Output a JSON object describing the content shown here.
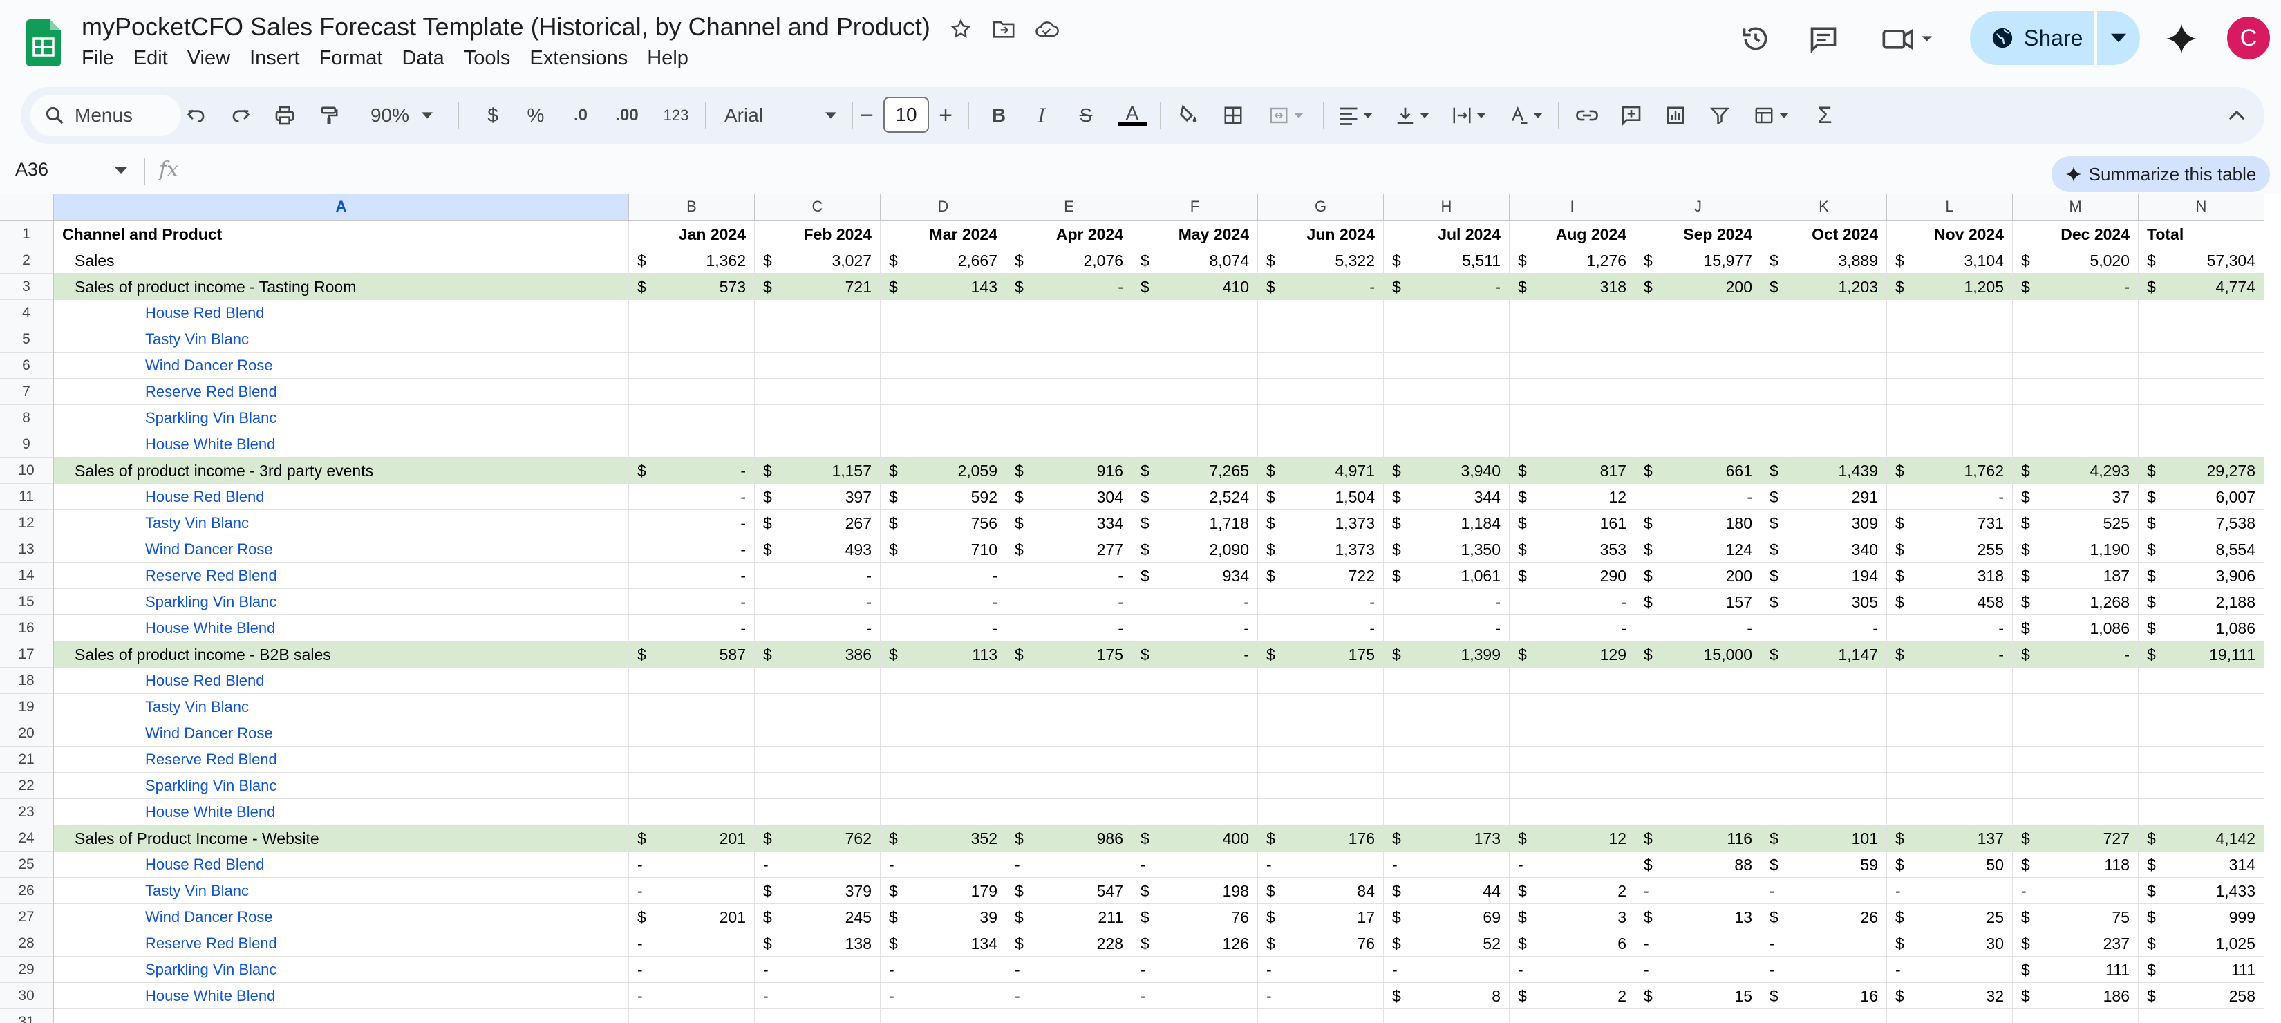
{
  "header": {
    "title": "myPocketCFO Sales Forecast Template (Historical, by Channel and Product)",
    "menu": [
      "File",
      "Edit",
      "View",
      "Insert",
      "Format",
      "Data",
      "Tools",
      "Extensions",
      "Help"
    ],
    "share_label": "Share",
    "avatar_letter": "C"
  },
  "toolbar": {
    "search_label": "Menus",
    "zoom": "90%",
    "currency": "$",
    "percent": "%",
    "decrease_decimal": ".0",
    "increase_decimal": ".00",
    "number_format": "123",
    "font": "Arial",
    "font_size": "10",
    "bold": "B",
    "italic": "I",
    "strike": "S",
    "text_color": "A"
  },
  "formula_bar": {
    "cell_ref": "A36",
    "fx": "fx",
    "summarize_label": "Summarize this table"
  },
  "columns": [
    "A",
    "B",
    "C",
    "D",
    "E",
    "F",
    "G",
    "H",
    "I",
    "J",
    "K",
    "L",
    "M",
    "N"
  ],
  "sheet": {
    "headers": [
      "Channel and Product",
      "Jan 2024",
      "Feb 2024",
      "Mar 2024",
      "Apr 2024",
      "May 2024",
      "Jun 2024",
      "Jul 2024",
      "Aug 2024",
      "Sep 2024",
      "Oct 2024",
      "Nov 2024",
      "Dec 2024",
      "Total"
    ],
    "rows": [
      {
        "n": "2",
        "label": "Sales",
        "level": 1,
        "green": false,
        "vals": [
          [
            "$",
            "1,362"
          ],
          [
            "$",
            "3,027"
          ],
          [
            "$",
            "2,667"
          ],
          [
            "$",
            "2,076"
          ],
          [
            "$",
            "8,074"
          ],
          [
            "$",
            "5,322"
          ],
          [
            "$",
            "5,511"
          ],
          [
            "$",
            "1,276"
          ],
          [
            "$",
            "15,977"
          ],
          [
            "$",
            "3,889"
          ],
          [
            "$",
            "3,104"
          ],
          [
            "$",
            "5,020"
          ],
          [
            "$",
            "57,304"
          ]
        ]
      },
      {
        "n": "3",
        "label": "Sales of product income - Tasting Room",
        "level": 1,
        "green": true,
        "vals": [
          [
            "$",
            "573"
          ],
          [
            "$",
            "721"
          ],
          [
            "$",
            "143"
          ],
          [
            "$",
            "-"
          ],
          [
            "$",
            "410"
          ],
          [
            "$",
            "-"
          ],
          [
            "$",
            "-"
          ],
          [
            "$",
            "318"
          ],
          [
            "$",
            "200"
          ],
          [
            "$",
            "1,203"
          ],
          [
            "$",
            "1,205"
          ],
          [
            "$",
            "-"
          ],
          [
            "$",
            "4,774"
          ]
        ]
      },
      {
        "n": "4",
        "label": "House Red Blend",
        "level": 2,
        "green": false,
        "vals": []
      },
      {
        "n": "5",
        "label": "Tasty Vin Blanc",
        "level": 2,
        "green": false,
        "vals": []
      },
      {
        "n": "6",
        "label": "Wind Dancer Rose",
        "level": 2,
        "green": false,
        "vals": []
      },
      {
        "n": "7",
        "label": "Reserve Red Blend",
        "level": 2,
        "green": false,
        "vals": []
      },
      {
        "n": "8",
        "label": "Sparkling Vin Blanc",
        "level": 2,
        "green": false,
        "vals": []
      },
      {
        "n": "9",
        "label": "House White Blend",
        "level": 2,
        "green": false,
        "vals": []
      },
      {
        "n": "10",
        "label": "Sales of product income - 3rd party events",
        "level": 1,
        "green": true,
        "vals": [
          [
            "$",
            "-"
          ],
          [
            "$",
            "1,157"
          ],
          [
            "$",
            "2,059"
          ],
          [
            "$",
            "916"
          ],
          [
            "$",
            "7,265"
          ],
          [
            "$",
            "4,971"
          ],
          [
            "$",
            "3,940"
          ],
          [
            "$",
            "817"
          ],
          [
            "$",
            "661"
          ],
          [
            "$",
            "1,439"
          ],
          [
            "$",
            "1,762"
          ],
          [
            "$",
            "4,293"
          ],
          [
            "$",
            "29,278"
          ]
        ]
      },
      {
        "n": "11",
        "label": "House Red Blend",
        "level": 2,
        "green": false,
        "vals": [
          [
            "",
            "-"
          ],
          [
            "$",
            "397"
          ],
          [
            "$",
            "592"
          ],
          [
            "$",
            "304"
          ],
          [
            "$",
            "2,524"
          ],
          [
            "$",
            "1,504"
          ],
          [
            "$",
            "344"
          ],
          [
            "$",
            "12"
          ],
          [
            "",
            "-"
          ],
          [
            "$",
            "291"
          ],
          [
            "",
            "-"
          ],
          [
            "$",
            "37"
          ],
          [
            "$",
            "6,007"
          ]
        ]
      },
      {
        "n": "12",
        "label": "Tasty Vin Blanc",
        "level": 2,
        "green": false,
        "vals": [
          [
            "",
            "-"
          ],
          [
            "$",
            "267"
          ],
          [
            "$",
            "756"
          ],
          [
            "$",
            "334"
          ],
          [
            "$",
            "1,718"
          ],
          [
            "$",
            "1,373"
          ],
          [
            "$",
            "1,184"
          ],
          [
            "$",
            "161"
          ],
          [
            "$",
            "180"
          ],
          [
            "$",
            "309"
          ],
          [
            "$",
            "731"
          ],
          [
            "$",
            "525"
          ],
          [
            "$",
            "7,538"
          ]
        ]
      },
      {
        "n": "13",
        "label": "Wind Dancer Rose",
        "level": 2,
        "green": false,
        "vals": [
          [
            "",
            "-"
          ],
          [
            "$",
            "493"
          ],
          [
            "$",
            "710"
          ],
          [
            "$",
            "277"
          ],
          [
            "$",
            "2,090"
          ],
          [
            "$",
            "1,373"
          ],
          [
            "$",
            "1,350"
          ],
          [
            "$",
            "353"
          ],
          [
            "$",
            "124"
          ],
          [
            "$",
            "340"
          ],
          [
            "$",
            "255"
          ],
          [
            "$",
            "1,190"
          ],
          [
            "$",
            "8,554"
          ]
        ]
      },
      {
        "n": "14",
        "label": "Reserve Red Blend",
        "level": 2,
        "green": false,
        "vals": [
          [
            "",
            "-"
          ],
          [
            "",
            "-"
          ],
          [
            "",
            "-"
          ],
          [
            "",
            "-"
          ],
          [
            "$",
            "934"
          ],
          [
            "$",
            "722"
          ],
          [
            "$",
            "1,061"
          ],
          [
            "$",
            "290"
          ],
          [
            "$",
            "200"
          ],
          [
            "$",
            "194"
          ],
          [
            "$",
            "318"
          ],
          [
            "$",
            "187"
          ],
          [
            "$",
            "3,906"
          ]
        ]
      },
      {
        "n": "15",
        "label": "Sparkling Vin Blanc",
        "level": 2,
        "green": false,
        "vals": [
          [
            "",
            "-"
          ],
          [
            "",
            "-"
          ],
          [
            "",
            "-"
          ],
          [
            "",
            "-"
          ],
          [
            "",
            "-"
          ],
          [
            "",
            "-"
          ],
          [
            "",
            "-"
          ],
          [
            "",
            "-"
          ],
          [
            "$",
            "157"
          ],
          [
            "$",
            "305"
          ],
          [
            "$",
            "458"
          ],
          [
            "$",
            "1,268"
          ],
          [
            "$",
            "2,188"
          ]
        ]
      },
      {
        "n": "16",
        "label": "House White Blend",
        "level": 2,
        "green": false,
        "vals": [
          [
            "",
            "-"
          ],
          [
            "",
            "-"
          ],
          [
            "",
            "-"
          ],
          [
            "",
            "-"
          ],
          [
            "",
            "-"
          ],
          [
            "",
            "-"
          ],
          [
            "",
            "-"
          ],
          [
            "",
            "-"
          ],
          [
            "",
            "-"
          ],
          [
            "",
            "-"
          ],
          [
            "",
            "-"
          ],
          [
            "$",
            "1,086"
          ],
          [
            "$",
            "1,086"
          ]
        ]
      },
      {
        "n": "17",
        "label": "Sales of product income - B2B sales",
        "level": 1,
        "green": true,
        "vals": [
          [
            "$",
            "587"
          ],
          [
            "$",
            "386"
          ],
          [
            "$",
            "113"
          ],
          [
            "$",
            "175"
          ],
          [
            "$",
            "-"
          ],
          [
            "$",
            "175"
          ],
          [
            "$",
            "1,399"
          ],
          [
            "$",
            "129"
          ],
          [
            "$",
            "15,000"
          ],
          [
            "$",
            "1,147"
          ],
          [
            "$",
            "-"
          ],
          [
            "$",
            "-"
          ],
          [
            "$",
            "19,111"
          ]
        ]
      },
      {
        "n": "18",
        "label": "House Red Blend",
        "level": 2,
        "green": false,
        "vals": []
      },
      {
        "n": "19",
        "label": "Tasty Vin Blanc",
        "level": 2,
        "green": false,
        "vals": []
      },
      {
        "n": "20",
        "label": "Wind Dancer Rose",
        "level": 2,
        "green": false,
        "vals": []
      },
      {
        "n": "21",
        "label": "Reserve Red Blend",
        "level": 2,
        "green": false,
        "vals": []
      },
      {
        "n": "22",
        "label": "Sparkling Vin Blanc",
        "level": 2,
        "green": false,
        "vals": []
      },
      {
        "n": "23",
        "label": "House White Blend",
        "level": 2,
        "green": false,
        "vals": []
      },
      {
        "n": "24",
        "label": "Sales of Product Income - Website",
        "level": 1,
        "green": true,
        "vals": [
          [
            "$",
            "201"
          ],
          [
            "$",
            "762"
          ],
          [
            "$",
            "352"
          ],
          [
            "$",
            "986"
          ],
          [
            "$",
            "400"
          ],
          [
            "$",
            "176"
          ],
          [
            "$",
            "173"
          ],
          [
            "$",
            "12"
          ],
          [
            "$",
            "116"
          ],
          [
            "$",
            "101"
          ],
          [
            "$",
            "137"
          ],
          [
            "$",
            "727"
          ],
          [
            "$",
            "4,142"
          ]
        ]
      },
      {
        "n": "25",
        "label": "House Red Blend",
        "level": 2,
        "green": false,
        "vals": [
          [
            "-",
            ""
          ],
          [
            "-",
            ""
          ],
          [
            "-",
            ""
          ],
          [
            "-",
            ""
          ],
          [
            "-",
            ""
          ],
          [
            "-",
            ""
          ],
          [
            "-",
            ""
          ],
          [
            "-",
            ""
          ],
          [
            "$",
            "88"
          ],
          [
            "$",
            "59"
          ],
          [
            "$",
            "50"
          ],
          [
            "$",
            "118"
          ],
          [
            "$",
            "314"
          ]
        ]
      },
      {
        "n": "26",
        "label": "Tasty Vin Blanc",
        "level": 2,
        "green": false,
        "vals": [
          [
            "-",
            ""
          ],
          [
            "$",
            "379"
          ],
          [
            "$",
            "179"
          ],
          [
            "$",
            "547"
          ],
          [
            "$",
            "198"
          ],
          [
            "$",
            "84"
          ],
          [
            "$",
            "44"
          ],
          [
            "$",
            "2"
          ],
          [
            "-",
            ""
          ],
          [
            "-",
            ""
          ],
          [
            "-",
            ""
          ],
          [
            "-",
            ""
          ],
          [
            "$",
            "1,433"
          ]
        ]
      },
      {
        "n": "27",
        "label": "Wind Dancer Rose",
        "level": 2,
        "green": false,
        "vals": [
          [
            "$",
            "201"
          ],
          [
            "$",
            "245"
          ],
          [
            "$",
            "39"
          ],
          [
            "$",
            "211"
          ],
          [
            "$",
            "76"
          ],
          [
            "$",
            "17"
          ],
          [
            "$",
            "69"
          ],
          [
            "$",
            "3"
          ],
          [
            "$",
            "13"
          ],
          [
            "$",
            "26"
          ],
          [
            "$",
            "25"
          ],
          [
            "$",
            "75"
          ],
          [
            "$",
            "999"
          ]
        ]
      },
      {
        "n": "28",
        "label": "Reserve Red Blend",
        "level": 2,
        "green": false,
        "vals": [
          [
            "-",
            ""
          ],
          [
            "$",
            "138"
          ],
          [
            "$",
            "134"
          ],
          [
            "$",
            "228"
          ],
          [
            "$",
            "126"
          ],
          [
            "$",
            "76"
          ],
          [
            "$",
            "52"
          ],
          [
            "$",
            "6"
          ],
          [
            "-",
            ""
          ],
          [
            "-",
            ""
          ],
          [
            "$",
            "30"
          ],
          [
            "$",
            "237"
          ],
          [
            "$",
            "1,025"
          ]
        ]
      },
      {
        "n": "29",
        "label": "Sparkling Vin Blanc",
        "level": 2,
        "green": false,
        "vals": [
          [
            "-",
            ""
          ],
          [
            "-",
            ""
          ],
          [
            "-",
            ""
          ],
          [
            "-",
            ""
          ],
          [
            "-",
            ""
          ],
          [
            "-",
            ""
          ],
          [
            "-",
            ""
          ],
          [
            "-",
            ""
          ],
          [
            "-",
            ""
          ],
          [
            "-",
            ""
          ],
          [
            "-",
            ""
          ],
          [
            "$",
            "111"
          ],
          [
            "$",
            "111"
          ]
        ]
      },
      {
        "n": "30",
        "label": "House White Blend",
        "level": 2,
        "green": false,
        "vals": [
          [
            "-",
            ""
          ],
          [
            "-",
            ""
          ],
          [
            "-",
            ""
          ],
          [
            "-",
            ""
          ],
          [
            "-",
            ""
          ],
          [
            "-",
            ""
          ],
          [
            "$",
            "8"
          ],
          [
            "$",
            "2"
          ],
          [
            "$",
            "15"
          ],
          [
            "$",
            "16"
          ],
          [
            "$",
            "32"
          ],
          [
            "$",
            "186"
          ],
          [
            "$",
            "258"
          ]
        ]
      },
      {
        "n": "31",
        "label": "",
        "level": 2,
        "green": false,
        "vals": []
      }
    ]
  }
}
